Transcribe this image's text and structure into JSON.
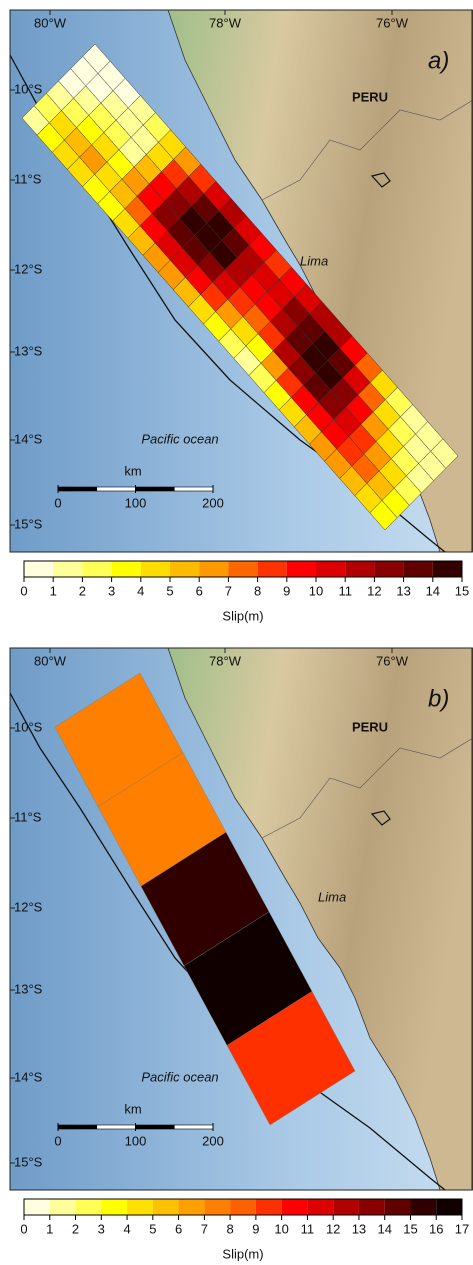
{
  "panels": [
    {
      "label": "a)",
      "lon_labels": [
        "80°W",
        "78°W",
        "76°W"
      ],
      "lat_labels": [
        "10°S",
        "11°S",
        "12°S",
        "13°S",
        "14°S",
        "15°S"
      ],
      "country": "PERU",
      "city": "Lima",
      "ocean": "Pacific ocean",
      "scale_bar": {
        "unit": "km",
        "ticks": [
          0,
          100,
          200
        ]
      },
      "slip": {
        "values": [
          [
            1,
            2,
            1,
            0,
            0,
            0
          ],
          [
            3,
            4,
            2,
            1,
            0,
            0
          ],
          [
            4,
            5,
            3,
            2,
            1,
            0
          ],
          [
            4,
            6,
            4,
            2,
            1,
            1
          ],
          [
            3,
            4,
            3,
            1,
            1,
            2
          ],
          [
            3,
            5,
            6,
            5,
            4,
            4
          ],
          [
            4,
            7,
            9,
            9,
            8,
            6
          ],
          [
            5,
            9,
            12,
            12,
            11,
            8
          ],
          [
            6,
            10,
            13,
            14,
            13,
            10
          ],
          [
            6,
            10,
            13,
            14.5,
            14,
            11
          ],
          [
            5,
            9,
            12,
            14,
            13,
            10
          ],
          [
            4,
            8,
            10,
            11,
            11,
            9
          ],
          [
            3,
            6,
            8,
            9,
            10,
            8
          ],
          [
            2,
            4,
            7,
            9,
            10,
            9
          ],
          [
            1,
            3,
            8,
            11,
            12,
            10
          ],
          [
            2,
            6,
            11,
            13,
            13,
            11
          ],
          [
            3,
            8,
            12,
            14,
            14,
            11
          ],
          [
            4,
            9,
            13,
            14,
            13,
            9
          ],
          [
            5,
            9,
            12,
            12,
            10,
            7
          ],
          [
            6,
            9,
            10,
            9,
            7,
            4
          ],
          [
            6,
            8,
            8,
            6,
            4,
            2
          ],
          [
            5,
            7,
            6,
            4,
            2,
            1
          ],
          [
            4,
            5,
            4,
            2,
            1,
            1
          ],
          [
            3,
            3,
            2,
            1,
            1,
            1
          ]
        ]
      },
      "colorbar": {
        "label": "Slip(m)",
        "ticks": [
          0,
          1,
          2,
          3,
          4,
          5,
          6,
          7,
          8,
          9,
          10,
          11,
          12,
          13,
          14,
          15
        ],
        "colors": [
          "#ffffe0",
          "#ffff99",
          "#ffff55",
          "#ffff00",
          "#ffdd00",
          "#ffbb00",
          "#ff9900",
          "#ff6600",
          "#ff3300",
          "#ff0000",
          "#dd0000",
          "#b00000",
          "#880000",
          "#600000",
          "#330000"
        ]
      }
    },
    {
      "label": "b)",
      "lon_labels": [
        "80°W",
        "78°W",
        "76°W"
      ],
      "lat_labels": [
        "10°S",
        "11°S",
        "12°S",
        "13°S",
        "14°S",
        "15°S"
      ],
      "country": "PERU",
      "city": "Lima",
      "ocean": "Pacific ocean",
      "scale_bar": {
        "unit": "km",
        "ticks": [
          0,
          100,
          200
        ]
      },
      "slip": {
        "values": [
          7.2,
          7.3,
          15.4,
          16.6,
          9.5
        ]
      },
      "colorbar": {
        "label": "Slip(m)",
        "ticks": [
          0,
          1,
          2,
          3,
          4,
          5,
          6,
          7,
          8,
          9,
          10,
          11,
          12,
          13,
          14,
          15,
          16,
          17
        ],
        "colors": [
          "#ffffe0",
          "#ffff99",
          "#ffff55",
          "#ffff00",
          "#ffe000",
          "#ffc000",
          "#ffa000",
          "#ff8000",
          "#ff6000",
          "#ff3000",
          "#ff0000",
          "#dd0000",
          "#b00000",
          "#880000",
          "#600000",
          "#300000",
          "#100000"
        ]
      }
    }
  ]
}
